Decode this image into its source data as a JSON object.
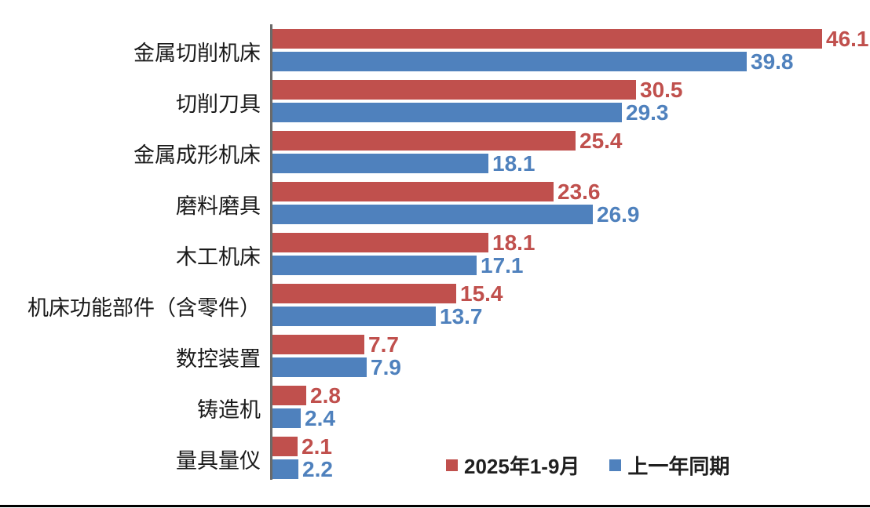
{
  "chart_data": {
    "type": "bar",
    "orientation": "horizontal",
    "title": "",
    "categories": [
      "金属切削机床",
      "切削刀具",
      "金属成形机床",
      "磨料磨具",
      "木工机床",
      "机床功能部件（含零件）",
      "数控装置",
      "铸造机",
      "量具量仪"
    ],
    "series": [
      {
        "name": "2025年1-9月",
        "color": "#c0504d",
        "values": [
          46.1,
          30.5,
          25.4,
          23.6,
          18.1,
          15.4,
          7.7,
          2.8,
          2.1
        ]
      },
      {
        "name": "上一年同期",
        "color": "#4f81bd",
        "values": [
          39.8,
          29.3,
          18.1,
          26.9,
          17.1,
          13.7,
          7.9,
          2.4,
          2.2
        ]
      }
    ],
    "xlim": [
      0,
      46.1
    ],
    "grid": false,
    "value_labels": true,
    "value_label_decimals": 1,
    "legend_position": "bottom-inside"
  },
  "colors": {
    "series_red": "#c0504d",
    "series_blue": "#4f81bd",
    "axis_line": "#6a6a6a",
    "bottom_rule": "#000000",
    "background": "#ffffff"
  }
}
